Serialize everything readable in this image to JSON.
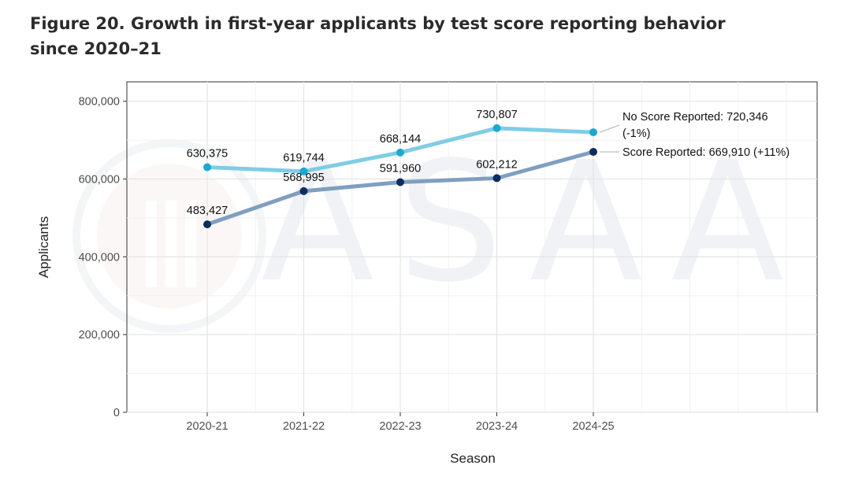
{
  "figure": {
    "title": "Figure 20. Growth in first-year applicants by test score reporting behavior since 2020–21"
  },
  "chart_data": {
    "type": "line",
    "xlabel": "Season",
    "ylabel": "Applicants",
    "categories": [
      "2020-21",
      "2021-22",
      "2022-23",
      "2023-24",
      "2024-25"
    ],
    "ylim": [
      0,
      850000
    ],
    "yticks": [
      0,
      200000,
      400000,
      600000,
      800000
    ],
    "ytick_labels": [
      "0",
      "200,000",
      "400,000",
      "600,000",
      "800,000"
    ],
    "grid": true,
    "series": [
      {
        "name": "No Score Reported",
        "color": "#7fcde5",
        "marker_color": "#1ba8d1",
        "values": [
          630375,
          619744,
          668144,
          730807,
          720346
        ],
        "point_labels": [
          "630,375",
          "619,744",
          "668,144",
          "730,807"
        ],
        "end_label": [
          "No Score Reported: 720,346",
          "(-1%)"
        ]
      },
      {
        "name": "Score Reported",
        "color": "#7f9fc1",
        "marker_color": "#0c2d5e",
        "values": [
          483427,
          568995,
          591960,
          602212,
          669910
        ],
        "point_labels": [
          "483,427",
          "568,995",
          "591,960",
          "602,212"
        ],
        "end_label": [
          "Score Reported: 669,910 (+11%)"
        ]
      }
    ],
    "watermark": "ASAA"
  }
}
